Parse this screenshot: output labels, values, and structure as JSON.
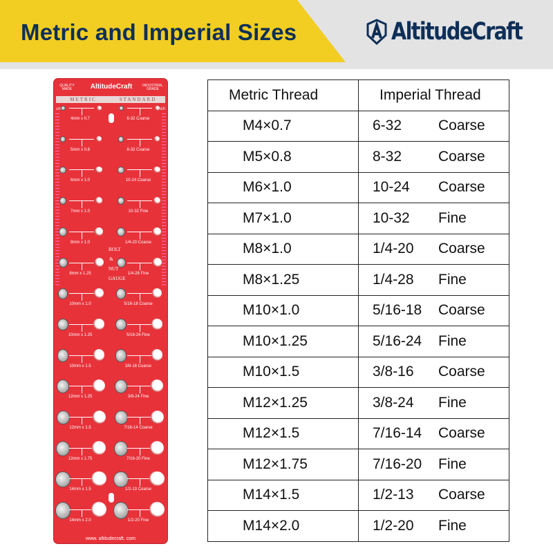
{
  "header": {
    "title": "Metric and Imperial Sizes",
    "brand": "AltitudeCraft",
    "colors": {
      "yellow": "#f2cd22",
      "navy": "#0e2f57",
      "grey": "#e3e3e3"
    }
  },
  "gauge": {
    "brand": "AltitudeCraft",
    "left_tag": "QUALITY MADE",
    "right_tag": "INDUSTRIAL GRADE",
    "band_left": "METRIC",
    "band_right": "STANDARD",
    "unit_left": "cm",
    "unit_right": "inch",
    "vertical_text": "BOLT & NUT GAUGE",
    "website": "www. altitudecraft. com",
    "color": "#e8323a",
    "metric_labels": [
      "4mm x 0.7",
      "5mm x 0.8",
      "6mm x 1.0",
      "7mm x 1.0",
      "8mm x 1.0",
      "8mm x 1.25",
      "10mm x 1.0",
      "10mm x 1.25",
      "10mm x 1.5",
      "12mm x 1.25",
      "12mm x 1.5",
      "12mm x 1.75",
      "14mm x 1.5",
      "14mm x 2.0"
    ],
    "imperial_labels": [
      "6-32 Coarse",
      "8-32 Coarse",
      "10-24 Coarse",
      "10-32 Fine",
      "1/4-20 Coarse",
      "1/4-28 Fine",
      "5/16-18 Coarse",
      "5/16-24 Fine",
      "3/8-16 Coarse",
      "3/8-24 Fine",
      "7/16-14 Coarse",
      "7/16-20 Fine",
      "1/2-13 Coarse",
      "1/2-20 Fine"
    ]
  },
  "table": {
    "headers": [
      "Metric Thread",
      "Imperial Thread"
    ],
    "rows": [
      {
        "metric": "M4×0.7",
        "size": "6-32",
        "type": "Coarse"
      },
      {
        "metric": "M5×0.8",
        "size": "8-32",
        "type": "Coarse"
      },
      {
        "metric": "M6×1.0",
        "size": "10-24",
        "type": "Coarse"
      },
      {
        "metric": "M7×1.0",
        "size": "10-32",
        "type": "Fine"
      },
      {
        "metric": "M8×1.0",
        "size": "1/4-20",
        "type": "Coarse"
      },
      {
        "metric": "M8×1.25",
        "size": "1/4-28",
        "type": "Fine"
      },
      {
        "metric": "M10×1.0",
        "size": "5/16-18",
        "type": "Coarse"
      },
      {
        "metric": "M10×1.25",
        "size": "5/16-24",
        "type": "Fine"
      },
      {
        "metric": "M10×1.5",
        "size": "3/8-16",
        "type": "Coarse"
      },
      {
        "metric": "M12×1.25",
        "size": "3/8-24",
        "type": "Fine"
      },
      {
        "metric": "M12×1.5",
        "size": "7/16-14",
        "type": "Coarse"
      },
      {
        "metric": "M12×1.75",
        "size": "7/16-20",
        "type": "Fine"
      },
      {
        "metric": "M14×1.5",
        "size": "1/2-13",
        "type": "Coarse"
      },
      {
        "metric": "M14×2.0",
        "size": "1/2-20",
        "type": "Fine"
      }
    ]
  }
}
